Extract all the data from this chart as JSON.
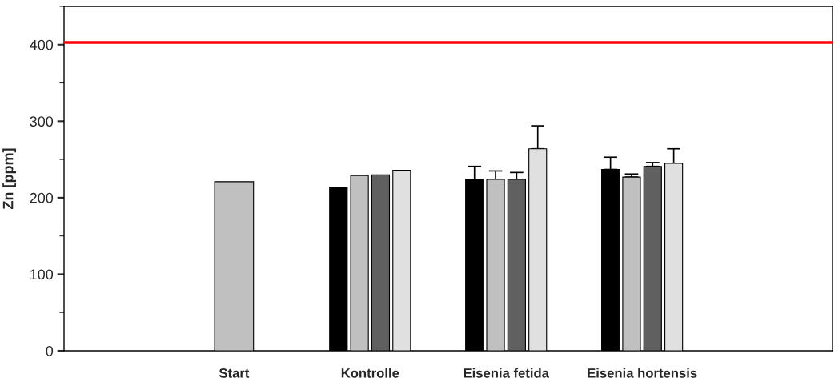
{
  "chart_data": {
    "type": "bar",
    "ylabel": "Zn [ppm]",
    "categories": [
      "Start",
      "Kontrolle",
      "Eisenia fetida",
      "Eisenia hortensis"
    ],
    "series": [
      {
        "color": "#c0c0c0",
        "values": [
          221,
          null,
          null,
          null
        ]
      },
      {
        "color": "#000000",
        "values": [
          null,
          214,
          224,
          237
        ],
        "errors": [
          null,
          null,
          [
            224,
            241
          ],
          [
            237,
            253
          ]
        ]
      },
      {
        "color": "#c0c0c0",
        "values": [
          null,
          229,
          224,
          227
        ],
        "errors": [
          null,
          null,
          [
            224,
            235
          ],
          [
            227,
            231
          ]
        ]
      },
      {
        "color": "#606060",
        "values": [
          null,
          230,
          224,
          241
        ],
        "errors": [
          null,
          null,
          [
            224,
            233
          ],
          [
            241,
            246
          ]
        ]
      },
      {
        "color": "#e0e0e0",
        "values": [
          null,
          236,
          264,
          245
        ],
        "errors": [
          null,
          null,
          [
            264,
            294
          ],
          [
            245,
            264
          ]
        ]
      }
    ],
    "ylim": [
      0,
      450
    ],
    "yticks": [
      0,
      100,
      200,
      300,
      400
    ],
    "ref_lines": [
      {
        "axis": "y",
        "value": 403,
        "color": "#ff0000"
      }
    ],
    "grid": false,
    "legend": false
  }
}
